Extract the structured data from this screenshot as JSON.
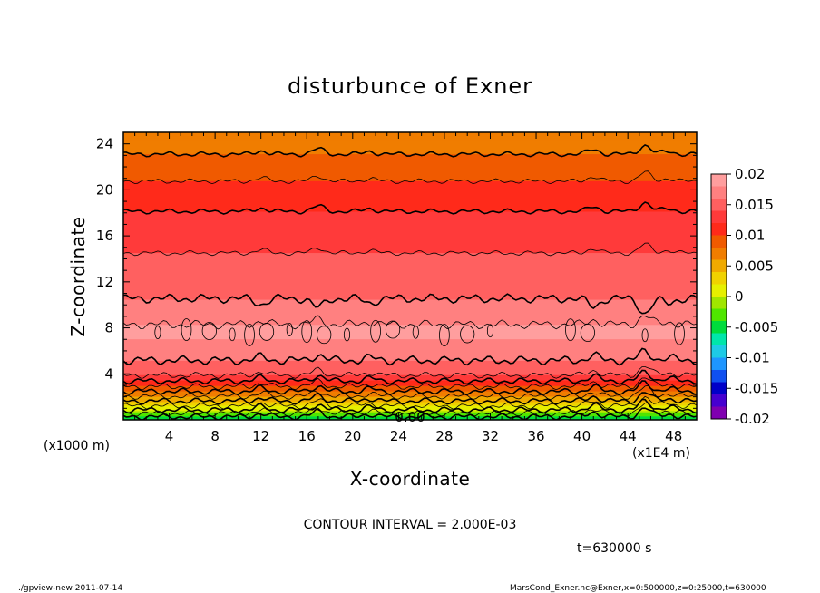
{
  "chart_data": {
    "type": "heatmap",
    "title": "disturbunce of Exner",
    "xlabel": "X-coordinate",
    "ylabel": "Z-coordinate",
    "x_unit_label": "(x1E4 m)",
    "y_unit_label": "(x1000 m)",
    "xlim": [
      0,
      50
    ],
    "ylim": [
      0,
      25
    ],
    "x_ticks": [
      "4",
      "8",
      "12",
      "16",
      "20",
      "24",
      "28",
      "32",
      "36",
      "40",
      "44",
      "48"
    ],
    "y_ticks": [
      "4",
      "8",
      "12",
      "16",
      "20",
      "24"
    ],
    "x_tick_values": [
      4,
      8,
      12,
      16,
      20,
      24,
      28,
      32,
      36,
      40,
      44,
      48
    ],
    "y_tick_values": [
      4,
      8,
      12,
      16,
      20,
      24
    ],
    "colorbar": {
      "min": -0.02,
      "max": 0.02,
      "ticks": [
        "0.02",
        "0.015",
        "0.01",
        "0.005",
        "0",
        "-0.005",
        "-0.01",
        "-0.015",
        "-0.02"
      ],
      "tick_values": [
        0.02,
        0.015,
        0.01,
        0.005,
        0,
        -0.005,
        -0.01,
        -0.015,
        -0.02
      ],
      "colors_low_to_high": [
        "#7f00b0",
        "#4600d0",
        "#0000c8",
        "#1050f0",
        "#1e96ff",
        "#1ecbe6",
        "#00e6aa",
        "#00dc3c",
        "#4fe600",
        "#a0e600",
        "#e6f000",
        "#f0d200",
        "#f0aa00",
        "#f07d00",
        "#f05a00",
        "#ff2a1a",
        "#ff3a3a",
        "#ff6060",
        "#ff8080",
        "#ff9e9e"
      ]
    },
    "profile": {
      "z": [
        0,
        1,
        2,
        3,
        4,
        5,
        6,
        7,
        8,
        9,
        10,
        11,
        12,
        13,
        14,
        15,
        16,
        17,
        18,
        19,
        20,
        21,
        22,
        23,
        24,
        25
      ],
      "value": [
        -0.0058,
        0.001,
        0.0058,
        0.0105,
        0.0145,
        0.0158,
        0.017,
        0.018,
        0.0182,
        0.0175,
        0.0166,
        0.0155,
        0.0148,
        0.0144,
        0.0142,
        0.0138,
        0.0134,
        0.0128,
        0.0121,
        0.0113,
        0.0106,
        0.0098,
        0.0089,
        0.0081,
        0.0071,
        0.0062
      ]
    },
    "contour_interval": 0.002,
    "zero_label": "0.00",
    "interval_text": "CONTOUR INTERVAL = 2.000E-03",
    "time_text": "t=630000 s"
  },
  "footer": {
    "left": "./gpview-new   2011-07-14",
    "right": "MarsCond_Exner.nc@Exner,x=0:500000,z=0:25000,t=630000"
  }
}
